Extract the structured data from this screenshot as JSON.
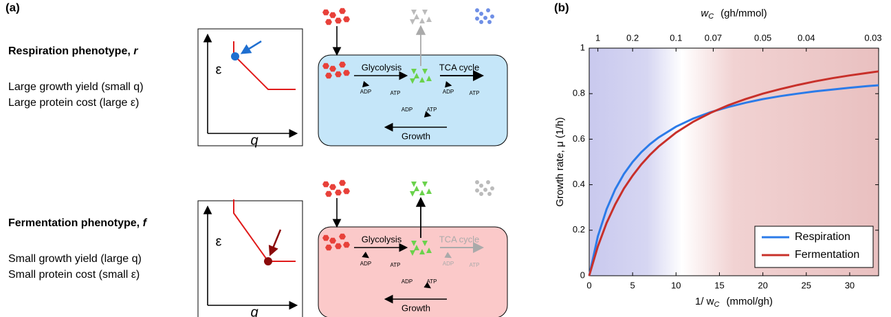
{
  "panel_a": {
    "label": "(a)",
    "phenotypes": [
      {
        "name": "Respiration phenotype, ",
        "symbol": "r",
        "lines": [
          "Large growth yield (small q)",
          "Large protein cost (large ε)"
        ],
        "y_axis": "ε",
        "x_axis": "q",
        "glycolysis": "Glycolysis",
        "tca": "TCA cycle",
        "adp1": "ADP",
        "atp1": "ATP",
        "adp2": "ADP",
        "atp2": "ATP",
        "adp3": "ADP",
        "atp3": "ATP",
        "growth": "Growth"
      },
      {
        "name": "Fermentation phenotype, ",
        "symbol": "f",
        "lines": [
          "Small growth yield (large q)",
          "Small protein cost (small ε)"
        ],
        "y_axis": "ε",
        "x_axis": "q",
        "glycolysis": "Glycolysis",
        "tca": "TCA cycle",
        "adp1": "ADP",
        "atp1": "ATP",
        "adp2": "ADP",
        "atp2": "ATP",
        "adp3": "ADP",
        "atp3": "ATP",
        "growth": "Growth"
      }
    ]
  },
  "chart_data": {
    "type": "line",
    "panel_label": "(b)",
    "y_label": "Growth rate,   μ  (1/h)",
    "x_label": "1/ w",
    "x_label_sub": "C",
    "x_label_unit": "(mmol/gh)",
    "x2_label": "w",
    "x2_label_sub": "C",
    "x2_label_unit": "(gh/mmol)",
    "x": [
      0,
      1,
      2,
      3,
      4,
      5,
      6,
      7,
      8,
      10,
      12,
      14,
      16,
      18,
      20,
      22,
      24,
      26,
      28,
      30,
      32,
      33.33
    ],
    "series": [
      {
        "name": "Respiration",
        "color": "#2b7be9",
        "values": [
          0,
          0.173,
          0.292,
          0.38,
          0.447,
          0.5,
          0.543,
          0.578,
          0.608,
          0.655,
          0.691,
          0.719,
          0.741,
          0.76,
          0.776,
          0.789,
          0.8,
          0.81,
          0.818,
          0.826,
          0.833,
          0.837
        ]
      },
      {
        "name": "Fermentation",
        "color": "#c8302a",
        "values": [
          0,
          0.129,
          0.232,
          0.314,
          0.383,
          0.44,
          0.489,
          0.531,
          0.568,
          0.629,
          0.677,
          0.716,
          0.749,
          0.776,
          0.8,
          0.82,
          0.838,
          0.854,
          0.868,
          0.88,
          0.891,
          0.898
        ]
      }
    ],
    "xlim": [
      0,
      33.33
    ],
    "xticks": [
      0,
      5,
      10,
      15,
      20,
      25,
      30
    ],
    "ylim": [
      0,
      1
    ],
    "yticks": [
      0,
      0.2,
      0.4,
      0.6,
      0.8,
      1
    ],
    "x2scale": "reciprocal",
    "x2ticks": [
      1,
      0.2,
      0.1,
      0.07,
      0.05,
      0.04,
      0.03
    ],
    "legend": "lower right"
  }
}
